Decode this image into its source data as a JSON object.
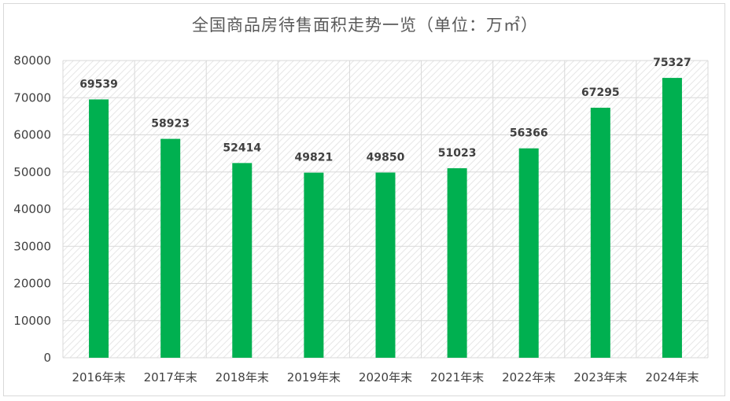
{
  "chart_data": {
    "type": "bar",
    "title": "全国商品房待售面积走势一览（单位：万㎡）",
    "categories": [
      "2016年末",
      "2017年末",
      "2018年末",
      "2019年末",
      "2020年末",
      "2021年末",
      "2022年末",
      "2023年末",
      "2024年末"
    ],
    "series": [
      {
        "values": [
          69539,
          58923,
          52414,
          49821,
          49850,
          51023,
          56366,
          67295,
          75327
        ]
      }
    ],
    "data_labels": [
      "69539",
      "58923",
      "52414",
      "49821",
      "49850",
      "51023",
      "56366",
      "67295",
      "75327"
    ],
    "ylim": [
      0,
      80000
    ],
    "yticks": [
      "0",
      "10000",
      "20000",
      "30000",
      "40000",
      "50000",
      "60000",
      "70000",
      "80000"
    ],
    "xlabel": "",
    "ylabel": "",
    "grid": true,
    "legend": "none",
    "colors": {
      "bar": "#00b050",
      "grid": "#d9d9d9",
      "hatch": "#e3e3e3"
    }
  }
}
